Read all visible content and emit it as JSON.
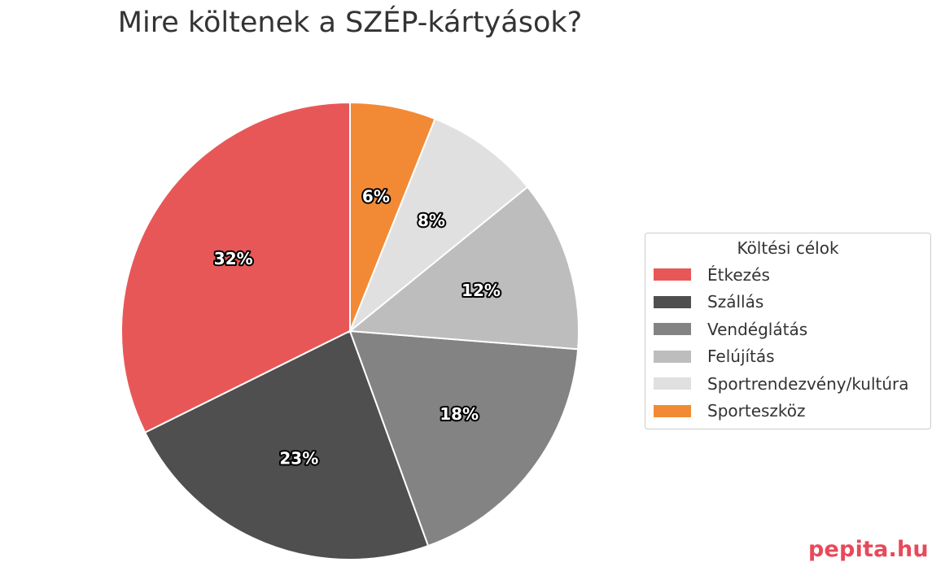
{
  "chart_data": {
    "type": "pie",
    "title": "Mire költenek a SZÉP-kártyások?",
    "legend_title": "Költési célok",
    "legend_position": "right",
    "start_angle": "top, counterclockwise",
    "slices": [
      {
        "label": "Étkezés",
        "value": 32,
        "display": "32%",
        "color": "#e85757"
      },
      {
        "label": "Szállás",
        "value": 23,
        "display": "23%",
        "color": "#4f4f4f"
      },
      {
        "label": "Vendéglátás",
        "value": 18,
        "display": "18%",
        "color": "#838383"
      },
      {
        "label": "Felújítás",
        "value": 12,
        "display": "12%",
        "color": "#bdbdbd"
      },
      {
        "label": "Sportrendezvény/kultúra",
        "value": 8,
        "display": "8%",
        "color": "#e0e0e0"
      },
      {
        "label": "Sporteszköz",
        "value": 6,
        "display": "6%",
        "color": "#f28a35"
      }
    ]
  },
  "brand": {
    "text": "pepita.hu",
    "color": "#e8495a"
  }
}
